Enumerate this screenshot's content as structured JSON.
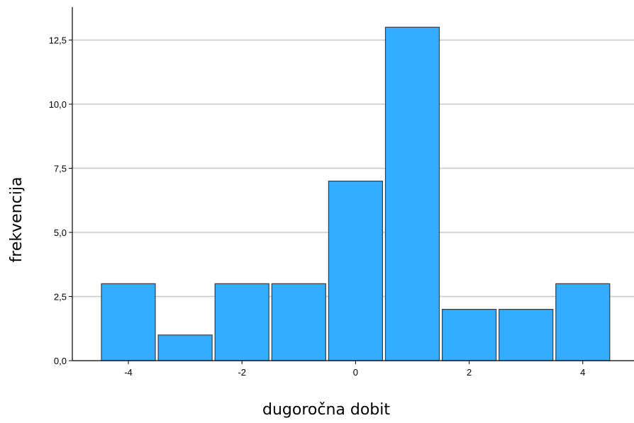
{
  "chart_data": {
    "type": "bar",
    "xlabel": "dugoročna dobit",
    "ylabel": "frekvencija",
    "x": [
      -4,
      -3,
      -2,
      -1,
      0,
      1,
      2,
      3,
      4
    ],
    "values": [
      3,
      1,
      3,
      3,
      7,
      13,
      2,
      2,
      3
    ],
    "x_ticks": [
      "-4",
      "-2",
      "0",
      "2",
      "4"
    ],
    "y_ticks": [
      "0,0",
      "2,5",
      "5,0",
      "7,5",
      "10,0",
      "12,5"
    ],
    "ylim": [
      0,
      14
    ],
    "xlim": [
      -4.5,
      4.5
    ],
    "grid": "horizontal",
    "bar_color": "#33adff",
    "bar_edge_color": "#3c3c3c",
    "grid_color": "#c8c8c8"
  }
}
